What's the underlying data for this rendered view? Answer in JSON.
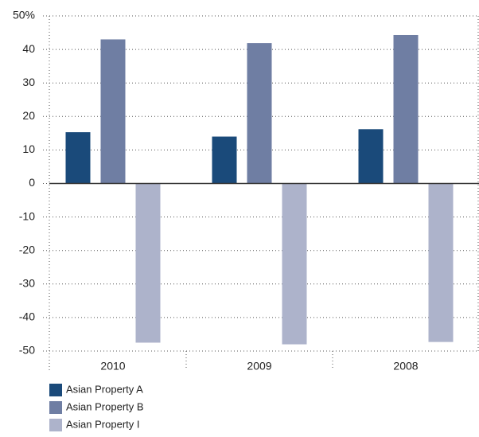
{
  "chart_data": {
    "type": "bar",
    "categories": [
      "2010",
      "2009",
      "2008"
    ],
    "series": [
      {
        "name": "Asian Property A",
        "color": "#1a4a7a",
        "values": [
          15.3,
          14.0,
          16.2
        ]
      },
      {
        "name": "Asian Property B",
        "color": "#6f7ea3",
        "values": [
          43.0,
          41.9,
          44.3
        ]
      },
      {
        "name": "Asian Property I",
        "color": "#adb3cb",
        "values": [
          -47.5,
          -48.0,
          -47.3
        ]
      }
    ],
    "ylim": [
      -50,
      50
    ],
    "yticks": [
      -50,
      -40,
      -30,
      -20,
      -10,
      0,
      10,
      20,
      30,
      {
        "value": 50,
        "label": "50%"
      },
      40
    ],
    "grid": true
  }
}
